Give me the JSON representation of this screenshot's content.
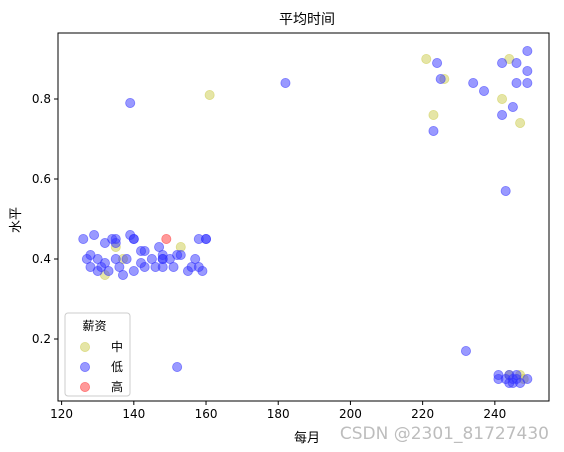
{
  "chart_data": {
    "type": "scatter",
    "title": "平均时间",
    "xlabel": "每月",
    "ylabel": "水平",
    "xlim": [
      119,
      255
    ],
    "ylim": [
      0.045,
      0.965
    ],
    "xticks": [
      120,
      140,
      160,
      180,
      200,
      220,
      240
    ],
    "yticks": [
      0.2,
      0.4,
      0.6,
      0.8
    ],
    "grid": false,
    "legend": {
      "title": "薪资",
      "position": "lower-left"
    },
    "series": [
      {
        "name": "中",
        "color": "#cccc4d",
        "points": [
          [
            132,
            0.36
          ],
          [
            135,
            0.43
          ],
          [
            137,
            0.4
          ],
          [
            153,
            0.43
          ],
          [
            161,
            0.81
          ],
          [
            221,
            0.9
          ],
          [
            223,
            0.76
          ],
          [
            226,
            0.85
          ],
          [
            242,
            0.8
          ],
          [
            244,
            0.9
          ],
          [
            247,
            0.74
          ],
          [
            244,
            0.11
          ],
          [
            247,
            0.11
          ],
          [
            248,
            0.1
          ]
        ]
      },
      {
        "name": "低",
        "color": "#3333ff",
        "points": [
          [
            126,
            0.45
          ],
          [
            127,
            0.4
          ],
          [
            128,
            0.38
          ],
          [
            128,
            0.41
          ],
          [
            129,
            0.46
          ],
          [
            130,
            0.37
          ],
          [
            130,
            0.4
          ],
          [
            131,
            0.38
          ],
          [
            132,
            0.39
          ],
          [
            132,
            0.44
          ],
          [
            133,
            0.37
          ],
          [
            134,
            0.45
          ],
          [
            135,
            0.4
          ],
          [
            135,
            0.44
          ],
          [
            135,
            0.45
          ],
          [
            136,
            0.38
          ],
          [
            137,
            0.36
          ],
          [
            138,
            0.4
          ],
          [
            139,
            0.46
          ],
          [
            139,
            0.79
          ],
          [
            140,
            0.45
          ],
          [
            140,
            0.37
          ],
          [
            140,
            0.45
          ],
          [
            142,
            0.39
          ],
          [
            142,
            0.42
          ],
          [
            143,
            0.38
          ],
          [
            143,
            0.42
          ],
          [
            145,
            0.4
          ],
          [
            146,
            0.38
          ],
          [
            147,
            0.43
          ],
          [
            148,
            0.4
          ],
          [
            148,
            0.41
          ],
          [
            148,
            0.38
          ],
          [
            148,
            0.4
          ],
          [
            150,
            0.4
          ],
          [
            151,
            0.38
          ],
          [
            152,
            0.41
          ],
          [
            152,
            0.13
          ],
          [
            153,
            0.41
          ],
          [
            155,
            0.37
          ],
          [
            156,
            0.38
          ],
          [
            157,
            0.4
          ],
          [
            158,
            0.38
          ],
          [
            158,
            0.45
          ],
          [
            159,
            0.37
          ],
          [
            160,
            0.45
          ],
          [
            160,
            0.45
          ],
          [
            182,
            0.84
          ],
          [
            223,
            0.72
          ],
          [
            224,
            0.89
          ],
          [
            225,
            0.85
          ],
          [
            232,
            0.17
          ],
          [
            234,
            0.84
          ],
          [
            237,
            0.82
          ],
          [
            241,
            0.1
          ],
          [
            241,
            0.11
          ],
          [
            242,
            0.76
          ],
          [
            242,
            0.89
          ],
          [
            243,
            0.57
          ],
          [
            243,
            0.1
          ],
          [
            244,
            0.09
          ],
          [
            244,
            0.11
          ],
          [
            245,
            0.78
          ],
          [
            245,
            0.1
          ],
          [
            245,
            0.09
          ],
          [
            246,
            0.89
          ],
          [
            246,
            0.84
          ],
          [
            246,
            0.11
          ],
          [
            246,
            0.1
          ],
          [
            247,
            0.09
          ],
          [
            249,
            0.92
          ],
          [
            249,
            0.87
          ],
          [
            249,
            0.84
          ],
          [
            249,
            0.1
          ]
        ]
      },
      {
        "name": "高",
        "color": "#ff3333",
        "points": [
          [
            149,
            0.45
          ]
        ]
      }
    ]
  },
  "watermark": "CSDN @2301_81727430"
}
